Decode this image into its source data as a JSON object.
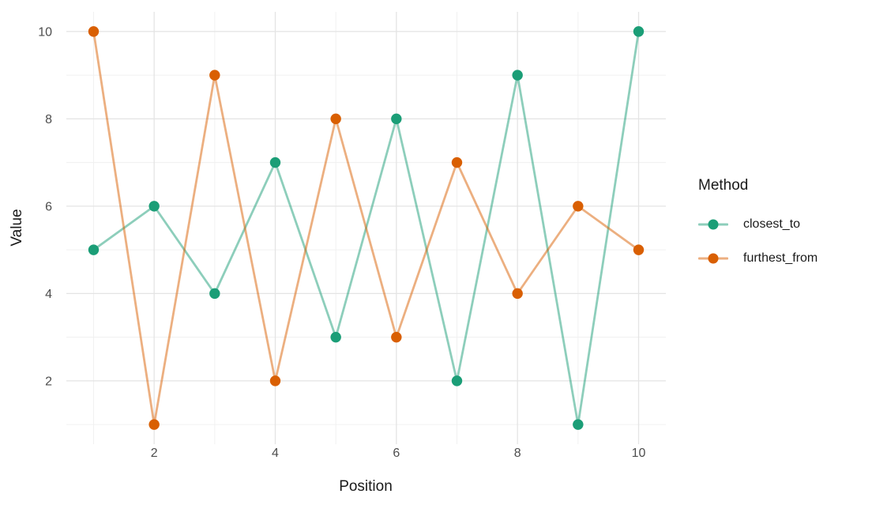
{
  "figure": {
    "background": "#ffffff"
  },
  "chart_data": {
    "type": "line",
    "title": "",
    "xlabel": "Position",
    "ylabel": "Value",
    "x": [
      1,
      2,
      3,
      4,
      5,
      6,
      7,
      8,
      9,
      10
    ],
    "series": [
      {
        "name": "closest_to",
        "point_color": "#1B9E77",
        "line_color": "rgba(27,158,119,0.5)",
        "values": [
          5,
          6,
          4,
          7,
          3,
          8,
          2,
          9,
          1,
          10
        ]
      },
      {
        "name": "furthest_from",
        "point_color": "#D95F02",
        "line_color": "rgba(217,95,2,0.5)",
        "values": [
          10,
          1,
          9,
          2,
          8,
          3,
          7,
          4,
          6,
          5
        ]
      }
    ],
    "x_major_ticks": [
      2,
      4,
      6,
      8,
      10
    ],
    "x_minor_ticks": [
      1,
      3,
      5,
      7,
      9
    ],
    "y_major_ticks": [
      2,
      4,
      6,
      8,
      10
    ],
    "y_minor_ticks": [
      1,
      3,
      5,
      7,
      9
    ],
    "xlim": [
      0.55,
      10.45
    ],
    "ylim": [
      0.55,
      10.45
    ],
    "grid": {
      "on": true,
      "major_color": "#E4E4E4",
      "minor_color": "#F0F0F0"
    },
    "legend": {
      "title": "Method",
      "position": "right"
    }
  },
  "text_colors": {
    "tick_label": "#4D4D4D",
    "title_text": "#1A1A1A"
  }
}
